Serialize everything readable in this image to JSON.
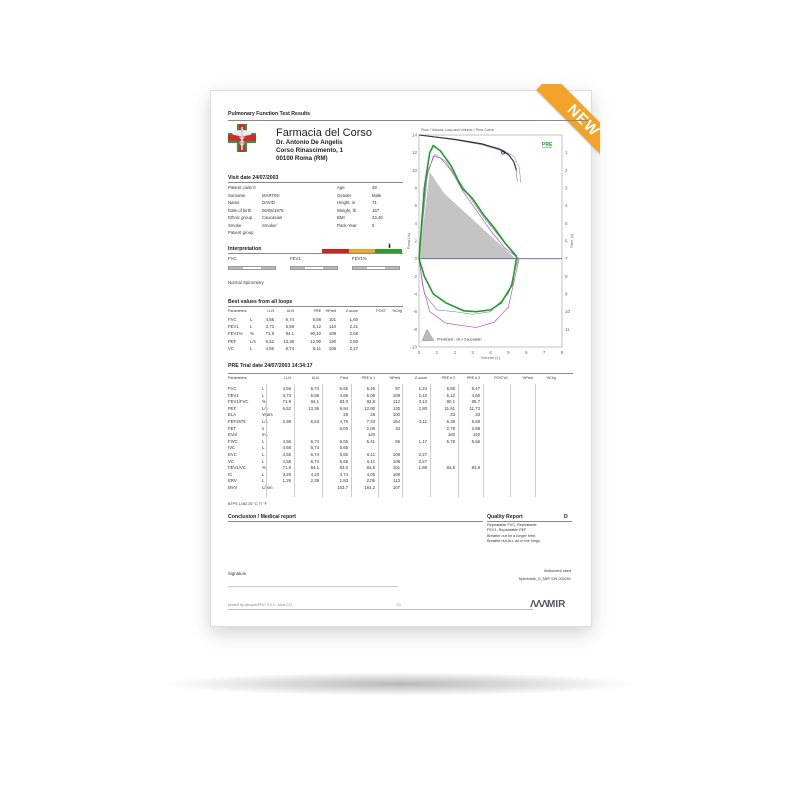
{
  "badge": "NEW",
  "report": {
    "title": "Pulmonary Function Test Results",
    "pharmacy": {
      "name": "Farmacia del Corso",
      "doctor": "Dr. Antonio De Angelis",
      "address1": "Corso Rinascimento, 1",
      "address2": "00100 Roma (RM)"
    },
    "visit_date": "Visit date 24/07/2003",
    "patient": [
      [
        "Patient code 0",
        "",
        "Age",
        "28"
      ],
      [
        "Surname",
        "MARTINI",
        "Gender",
        "Male"
      ],
      [
        "Name",
        "DAVID",
        "Height, in",
        "71"
      ],
      [
        "Date of birth",
        "06/05/1975",
        "Weight, lb",
        "167"
      ],
      [
        "Ethnic group",
        "Caucasian",
        "BMI",
        "23,46"
      ],
      [
        "Smoke",
        "Smoker",
        "Pack-Year",
        "5"
      ],
      [
        "Patient group",
        "",
        "",
        ""
      ]
    ],
    "interpretation": {
      "title": "Interpretation",
      "gauges": [
        "FVC",
        "FEV1",
        "FEV1%"
      ],
      "result": "Normal Spirometry",
      "colors": [
        "#d42020",
        "#e8a830",
        "#2aa02a"
      ],
      "level": "green"
    },
    "best": {
      "title": "Best values from all loops",
      "headers": [
        "Parameters",
        "",
        "LLN",
        "ULN",
        "PRE",
        "%Pred",
        "Z-score",
        "POST",
        "%Chg"
      ],
      "rows": [
        [
          "FVC",
          "L",
          "4,56",
          "6,74",
          "5,68",
          "101",
          "1,60"
        ],
        [
          "FEV1",
          "L",
          "3,73",
          "5,59",
          "5,12",
          "110",
          "2,21"
        ],
        [
          "FEV1%",
          "%",
          "71,9",
          "94.1",
          "90,10",
          "109",
          "2,68"
        ],
        [
          "PEF",
          "L/s",
          "6,52",
          "13,36",
          "12,90",
          "130",
          "2,80"
        ],
        [
          "VC",
          "L",
          "4,56",
          "6,74",
          "6,11",
          "108",
          "2,27"
        ]
      ]
    },
    "trial": {
      "title": "PRE Trial date 24/07/2003   14:34:17",
      "headers": [
        "Parameters",
        "",
        "LLN",
        "ULN",
        "Pred",
        "PRE # 1",
        "%Pred",
        "Z-score",
        "PRE # 2",
        "PRE # 3",
        "POST#1",
        "%Pred",
        "%Chg"
      ],
      "rows": [
        [
          "FVC",
          "L",
          "4,56",
          "6,74",
          "5,65",
          "5,45",
          "97",
          "1,24",
          "5,68",
          "5,47"
        ],
        [
          "FEV1",
          "L",
          "3,73",
          "5,59",
          "4,66",
          "5,06",
          "109",
          "2,10",
          "5,12",
          "4,65"
        ],
        [
          "FEV1/FVC",
          "%",
          "71,9",
          "94,1",
          "83,0",
          "92,8",
          "112",
          "3,13",
          "90,1",
          "88,7"
        ],
        [
          "PEF",
          "L/s",
          "6,52",
          "13,36",
          "9,94",
          "12,90",
          "130",
          "2,80",
          "11,91",
          "11,73"
        ],
        [
          "ELA",
          "Years",
          "",
          "",
          "28",
          "28",
          "100",
          "",
          "33",
          "33"
        ],
        [
          "FEF2575",
          "L/s",
          "2,98",
          "6,53",
          "4,76",
          "7,33",
          "154",
          "3,11",
          "6,38",
          "5,88"
        ],
        [
          "FET",
          "s",
          "",
          "",
          "6,00",
          "2,06",
          "34",
          "",
          "2,78",
          "2,88"
        ],
        [
          "EVol",
          "mL",
          "",
          "",
          "",
          "120",
          "",
          "",
          "160",
          "140"
        ],
        [
          "FIVC",
          "L",
          "4,56",
          "6,74",
          "5,65",
          "5,41",
          "96",
          "1,17",
          "5,78",
          "5,56"
        ],
        [
          "IVC",
          "L",
          "4,56",
          "6,74",
          "5,65",
          "",
          "",
          "",
          "",
          ""
        ],
        [
          "EVC",
          "L",
          "4,56",
          "6,74",
          "5,65",
          "6,11",
          "108",
          "2,27",
          "",
          ""
        ],
        [
          "VC",
          "L",
          "4,56",
          "6,74",
          "5,65",
          "6,11",
          "108",
          "2,27",
          "",
          ""
        ],
        [
          "FEV1/VC",
          "%",
          "71,9",
          "94,1",
          "83,0",
          "83,8",
          "101",
          "1,88",
          "83,8",
          "83,8"
        ],
        [
          "IC",
          "L",
          "3,26",
          "4,23",
          "3,74",
          "4,05",
          "108",
          "",
          "",
          ""
        ],
        [
          "ERV",
          "L",
          "1,26",
          "2,39",
          "1,83",
          "2,06",
          "113",
          "",
          "",
          ""
        ],
        [
          "MVV",
          "L/min",
          "",
          "",
          "153,7",
          "164,2",
          "107",
          "",
          "",
          ""
        ]
      ],
      "btps": "BTPS 1,082  25 °C  77 °F"
    },
    "conclusion": "Conclusion / Medical report",
    "quality": {
      "title": "Quality Report",
      "grade": "D",
      "lines": [
        "Repeatable FVC, Repeatable",
        "FEV1, Repeatable PEF",
        "Breathe out for a longer time,",
        "Breathe out ALL air in the lungs"
      ]
    },
    "signature": "Signature",
    "instrument": {
      "label": "Instrument used",
      "value": "Spirobank_G_MIR S/N 003291"
    },
    "footer": {
      "printed": "printed by winspiroPRO 5.9.0 - Mod.C11",
      "page": "1/1",
      "logo": "MIR"
    }
  },
  "chart_data": {
    "type": "line",
    "title": "Flow / Volume Loop and Volume / Time Curve",
    "xlabel": "Volume (L)",
    "ylabel": "Flow(L/s)",
    "y2label": "Time (s)",
    "xlim": [
      0,
      8
    ],
    "ylim": [
      -10,
      14
    ],
    "y2lim": [
      0,
      12
    ],
    "xticks": [
      0,
      1,
      2,
      3,
      4,
      5,
      6,
      7,
      8
    ],
    "yticks": [
      -10,
      -8,
      -6,
      -4,
      -2,
      0,
      2,
      4,
      6,
      8,
      10,
      12,
      14
    ],
    "y2ticks": [
      1,
      2,
      3,
      4,
      5,
      6,
      7,
      8,
      9,
      10,
      11
    ],
    "label": "PRE",
    "legend": "Predicted - GLI Caucasian",
    "legend_position": "bottom-left",
    "predicted": [
      [
        0,
        0
      ],
      [
        0.6,
        9.8
      ],
      [
        1.4,
        7.4
      ],
      [
        5.4,
        0
      ]
    ],
    "loops": [
      {
        "color": "#1f9e2a",
        "points": [
          [
            0,
            0
          ],
          [
            0.3,
            8
          ],
          [
            0.6,
            12
          ],
          [
            0.8,
            12.8
          ],
          [
            1.2,
            12.2
          ],
          [
            1.8,
            10.5
          ],
          [
            2.4,
            8
          ],
          [
            3,
            6.8
          ],
          [
            3.6,
            5
          ],
          [
            4.2,
            3.5
          ],
          [
            4.8,
            1.8
          ],
          [
            5.45,
            0.3
          ],
          [
            5.45,
            0
          ],
          [
            5.2,
            -3
          ],
          [
            4.6,
            -5
          ],
          [
            4,
            -5.8
          ],
          [
            3.2,
            -6
          ],
          [
            2.5,
            -5.9
          ],
          [
            1.5,
            -5
          ],
          [
            0.8,
            -4
          ],
          [
            0.3,
            -2
          ],
          [
            0,
            0
          ]
        ]
      },
      {
        "color": "#c050c8",
        "points": [
          [
            0,
            0
          ],
          [
            0.4,
            9
          ],
          [
            0.8,
            11.6
          ],
          [
            1.2,
            11.4
          ],
          [
            1.8,
            10
          ],
          [
            2.5,
            7.5
          ],
          [
            3.3,
            5.2
          ],
          [
            4,
            3.2
          ],
          [
            4.8,
            1.2
          ],
          [
            5.6,
            0
          ],
          [
            5,
            -5.5
          ],
          [
            4.2,
            -7.2
          ],
          [
            3.2,
            -7.8
          ],
          [
            2.5,
            -7.6
          ],
          [
            1.5,
            -7.3
          ],
          [
            0.6,
            -6
          ],
          [
            0.2,
            -3
          ],
          [
            0,
            0
          ]
        ]
      },
      {
        "color": "#8a98b0",
        "points": [
          [
            0,
            0
          ],
          [
            0.5,
            10
          ],
          [
            0.9,
            11.8
          ],
          [
            1.5,
            11
          ],
          [
            2.5,
            8
          ],
          [
            3.5,
            5
          ],
          [
            4.5,
            2.5
          ],
          [
            5.3,
            0.5
          ],
          [
            5.55,
            0
          ],
          [
            5,
            -4
          ],
          [
            4,
            -6
          ],
          [
            3,
            -6.3
          ],
          [
            2,
            -6
          ],
          [
            1,
            -5.8
          ],
          [
            0.3,
            -4
          ],
          [
            0,
            0
          ]
        ]
      }
    ],
    "volume_time": [
      {
        "color": "#333333",
        "points": [
          [
            0,
            0
          ],
          [
            2,
            0.25
          ],
          [
            3.5,
            0.5
          ],
          [
            4.5,
            0.8
          ],
          [
            5,
            1.1
          ],
          [
            5.3,
            1.5
          ],
          [
            5.45,
            2
          ]
        ]
      },
      {
        "color": "#c050c8",
        "points": [
          [
            0,
            0
          ],
          [
            2,
            0.27
          ],
          [
            3.5,
            0.55
          ],
          [
            4.5,
            0.85
          ],
          [
            5.1,
            1.2
          ],
          [
            5.4,
            1.7
          ],
          [
            5.5,
            2.6
          ]
        ]
      },
      {
        "color": "#8a98b0",
        "points": [
          [
            0,
            0
          ],
          [
            2,
            0.22
          ],
          [
            3.5,
            0.48
          ],
          [
            4.6,
            0.8
          ],
          [
            5.3,
            1.2
          ],
          [
            5.6,
            1.8
          ],
          [
            5.7,
            2.7
          ]
        ]
      }
    ],
    "marker": {
      "label": "O",
      "volume": 4.7,
      "time": 1.0
    }
  }
}
